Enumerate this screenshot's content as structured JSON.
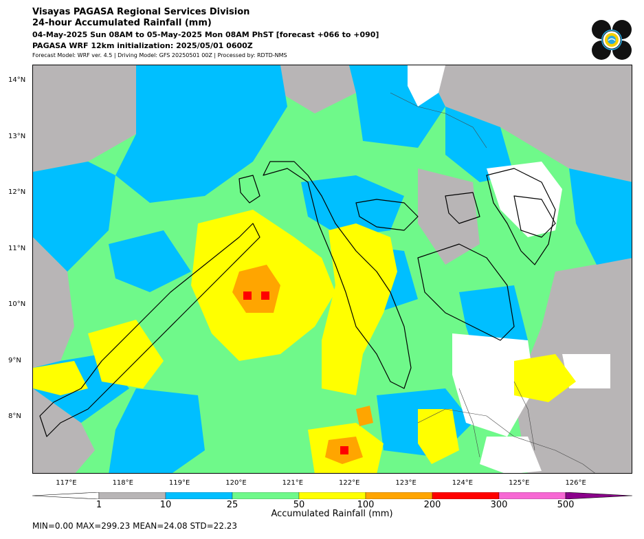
{
  "header": {
    "line1": "Visayas PAGASA Regional Services Division",
    "line2": "24-hour Accumulated Rainfall (mm)",
    "line3": "04-May-2025 Sun 08AM to 05-May-2025 Mon 08AM PhST [forecast +066 to +090]",
    "line4": "PAGASA WRF 12km initialization: 2025/05/01 0600Z",
    "line5": "Forecast Model: WRF ver. 4.5 | Driving Model: GFS 20250501 00Z | Processed by: RDTD-NMS"
  },
  "logo": {
    "name": "PAGASA seal",
    "colors": [
      "#111111",
      "#29a8e0",
      "#f5d000"
    ]
  },
  "map": {
    "lon_range": [
      116.4,
      127.0
    ],
    "lat_range": [
      7.0,
      14.3
    ],
    "lat_ticks": [
      "14°N",
      "13°N",
      "12°N",
      "11°N",
      "10°N",
      "9°N",
      "8°N"
    ],
    "lon_ticks": [
      "117°E",
      "118°E",
      "119°E",
      "120°E",
      "121°E",
      "122°E",
      "123°E",
      "124°E",
      "125°E",
      "126°E"
    ]
  },
  "colorbar": {
    "title": "Accumulated Rainfall (mm)",
    "labels": [
      "1",
      "10",
      "25",
      "50",
      "100",
      "200",
      "300",
      "500"
    ],
    "colors": [
      "#b8b5b6",
      "#00bfff",
      "#6ff98a",
      "#ffff00",
      "#ffa500",
      "#ff0000",
      "#f768d4",
      "#8b008b"
    ],
    "under_color": "#ffffff"
  },
  "stats": {
    "text": "MIN=0.00   MAX=299.23   MEAN=24.08   STD=22.23"
  }
}
